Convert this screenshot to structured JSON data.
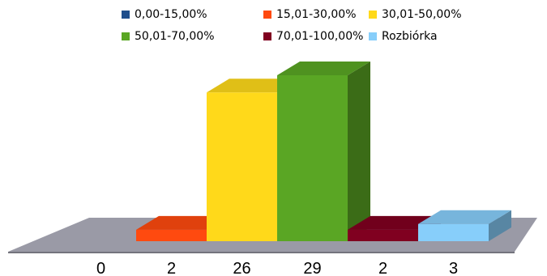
{
  "chart_data": {
    "type": "bar",
    "style": "3d-column",
    "categories": [
      "0",
      "2",
      "26",
      "29",
      "2",
      "3"
    ],
    "values": [
      0,
      2,
      26,
      29,
      2,
      3
    ],
    "series": [
      {
        "name": "0,00-15,00%",
        "value": 0,
        "color": "#1f4e8c"
      },
      {
        "name": "15,01-30,00%",
        "value": 2,
        "color": "#ff4a0f"
      },
      {
        "name": "30,01-50,00%",
        "value": 26,
        "color": "#ffd91a"
      },
      {
        "name": "50,01-70,00%",
        "value": 29,
        "color": "#5aa624"
      },
      {
        "name": "70,01-100,00%",
        "value": 2,
        "color": "#800020"
      },
      {
        "name": "Rozbiórka",
        "value": 3,
        "color": "#87cefa"
      }
    ],
    "legend_position": "top",
    "floor_color": "#9a9aa6",
    "grid": false
  }
}
